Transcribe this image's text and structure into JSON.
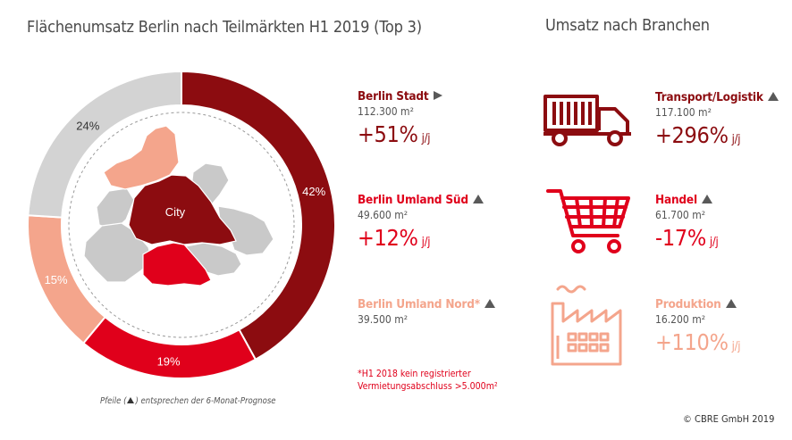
{
  "titles": {
    "left": "Flächenumsatz Berlin nach Teilmärkten H1 2019 (Top 3)",
    "right": "Umsatz nach Branchen"
  },
  "chart_data": {
    "type": "pie",
    "variant": "donut",
    "title": "Flächenumsatz Berlin nach Teilmärkten H1 2019 (Top 3)",
    "slices": [
      {
        "label": "Berlin Stadt",
        "value": 42,
        "display": "42%",
        "color": "#8c0c10"
      },
      {
        "label": "Berlin Umland Süd",
        "value": 19,
        "display": "19%",
        "color": "#e0001b"
      },
      {
        "label": "Berlin Umland Nord",
        "value": 15,
        "display": "15%",
        "color": "#f4a58c"
      },
      {
        "label": "",
        "value": 24,
        "display": "24%",
        "color": "#d3d3d3"
      }
    ],
    "legend": "right",
    "center_label": "City"
  },
  "markets": [
    {
      "name": "Berlin Stadt",
      "area": "112.300 m²",
      "change": "+51%",
      "unit": "j/j",
      "trend": "right",
      "color": "#8c0c10"
    },
    {
      "name": "Berlin Umland Süd",
      "area": "49.600 m²",
      "change": "+12%",
      "unit": "j/j",
      "trend": "up",
      "color": "#e0001b"
    },
    {
      "name": "Berlin Umland Nord*",
      "area": "39.500 m²",
      "trend": "up",
      "color": "#f4a58c"
    }
  ],
  "footnote": {
    "line1": "*H1 2018 kein registrierter",
    "line2": "Vermietungsabschluss >5.000m²"
  },
  "sectors": [
    {
      "name": "Transport/Logistik",
      "area": "117.100 m²",
      "change": "+296%",
      "unit": "j/j",
      "trend": "up",
      "icon": "truck-icon",
      "color": "#8c0c10"
    },
    {
      "name": "Handel",
      "area": "61.700 m²",
      "change": "-17%",
      "unit": "j/j",
      "trend": "up",
      "icon": "shopping-cart-icon",
      "color": "#e0001b"
    },
    {
      "name": "Produktion",
      "area": "16.200 m²",
      "change": "+110%",
      "unit": "j/j",
      "trend": "up",
      "icon": "factory-icon",
      "color": "#f4a58c"
    }
  ],
  "note": {
    "before": "Pfeile (",
    "after": ") entsprechen der 6-Monat-Prognose"
  },
  "copyright": "© CBRE GmbH 2019"
}
